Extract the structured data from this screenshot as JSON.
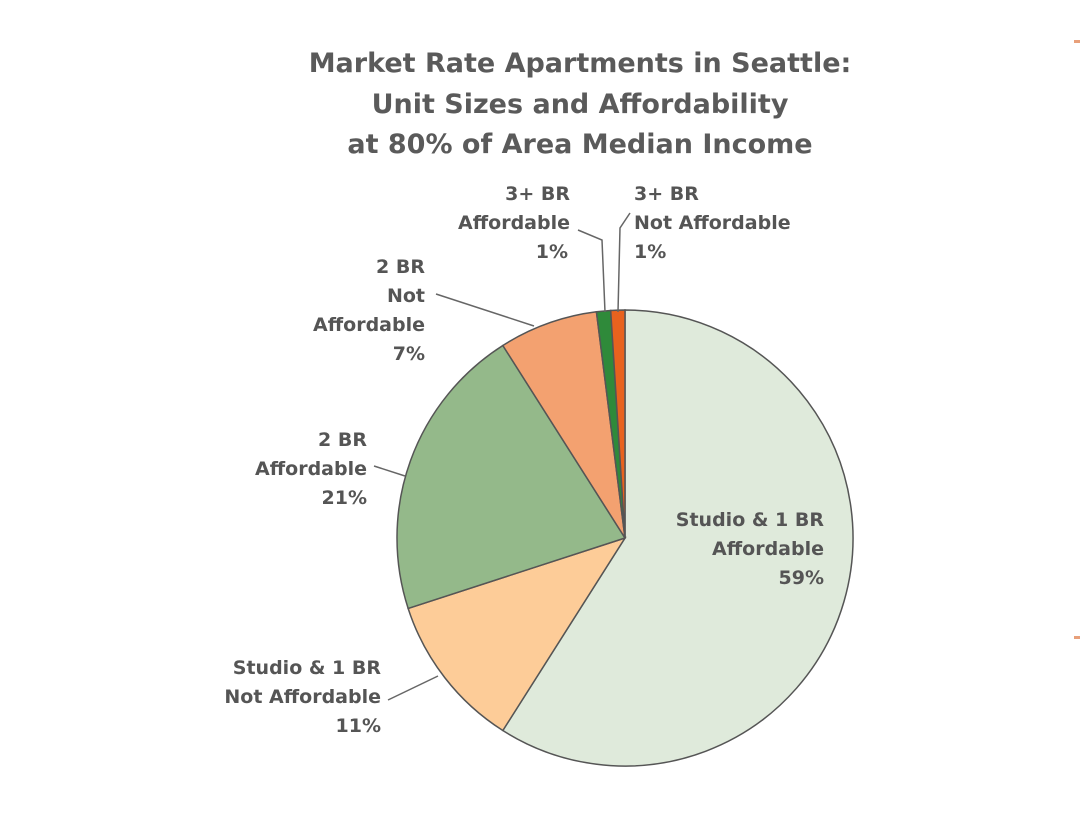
{
  "chart_data": {
    "type": "pie",
    "title": [
      "Market Rate Apartments in Seattle:",
      "Unit Sizes and Affordability",
      "at 80% of Area Median Income"
    ],
    "slices": [
      {
        "label": [
          "Studio & 1 BR",
          "Affordable",
          "59%"
        ],
        "value": 59,
        "color": "#dfeadb"
      },
      {
        "label": [
          "Studio & 1 BR",
          "Not Affordable",
          "11%"
        ],
        "value": 11,
        "color": "#fdcc98"
      },
      {
        "label": [
          "2 BR",
          "Affordable",
          "21%"
        ],
        "value": 21,
        "color": "#94b98a"
      },
      {
        "label": [
          "2 BR",
          "Not",
          "Affordable",
          "7%"
        ],
        "value": 7,
        "color": "#f3a170"
      },
      {
        "label": [
          "3+ BR",
          "Affordable",
          "1%"
        ],
        "value": 1,
        "color": "#2f8a3a"
      },
      {
        "label": [
          "3+ BR",
          "Not Affordable",
          "1%"
        ],
        "value": 1,
        "color": "#e8621e"
      }
    ]
  }
}
